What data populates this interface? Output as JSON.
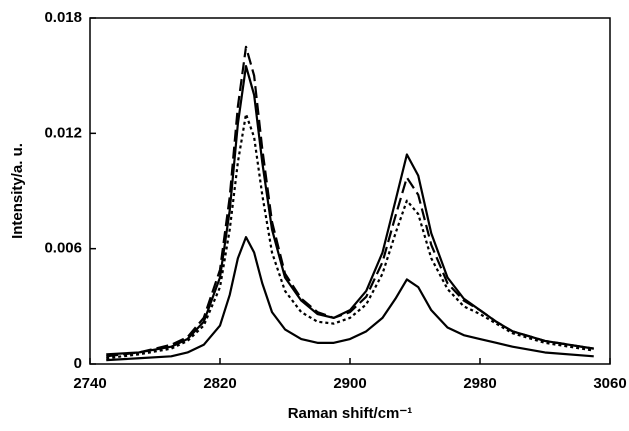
{
  "chart_data": {
    "type": "line",
    "xlabel": "Raman shift/cm⁻¹",
    "ylabel": "Intensity/a. u.",
    "xlim": [
      2740,
      3060
    ],
    "xticks": [
      2740,
      2820,
      2900,
      2980,
      3060
    ],
    "ylim": [
      0,
      0.018
    ],
    "yticks": [
      0,
      0.006,
      0.012,
      0.018
    ],
    "x": [
      2750,
      2770,
      2790,
      2800,
      2810,
      2820,
      2826,
      2831,
      2836,
      2841,
      2846,
      2852,
      2860,
      2870,
      2880,
      2890,
      2900,
      2910,
      2920,
      2928,
      2935,
      2942,
      2950,
      2960,
      2970,
      2980,
      2990,
      3000,
      3020,
      3050
    ],
    "series": [
      {
        "color": "#000000",
        "style": "dashed",
        "values": [
          0.0004,
          0.0006,
          0.001,
          0.0014,
          0.0024,
          0.0049,
          0.0087,
          0.0134,
          0.0165,
          0.015,
          0.0112,
          0.0074,
          0.0047,
          0.0034,
          0.0027,
          0.0024,
          0.0027,
          0.0035,
          0.0053,
          0.0077,
          0.0097,
          0.0088,
          0.0062,
          0.0042,
          0.0033,
          0.0028,
          0.0022,
          0.0017,
          0.0012,
          0.0008
        ]
      },
      {
        "color": "#000000",
        "style": "solid",
        "values": [
          0.0005,
          0.0006,
          0.0009,
          0.0013,
          0.0022,
          0.0045,
          0.008,
          0.0125,
          0.0155,
          0.014,
          0.0105,
          0.007,
          0.0045,
          0.0033,
          0.0026,
          0.0024,
          0.0028,
          0.0038,
          0.0058,
          0.0085,
          0.0109,
          0.0098,
          0.0068,
          0.0045,
          0.0034,
          0.0028,
          0.0022,
          0.0017,
          0.0012,
          0.0008
        ]
      },
      {
        "color": "#000000",
        "style": "dotted",
        "values": [
          0.0003,
          0.0005,
          0.0008,
          0.0012,
          0.002,
          0.004,
          0.007,
          0.0105,
          0.013,
          0.0118,
          0.0088,
          0.0058,
          0.0038,
          0.0027,
          0.0022,
          0.0021,
          0.0024,
          0.0031,
          0.0047,
          0.0068,
          0.0085,
          0.0078,
          0.0055,
          0.0039,
          0.003,
          0.0026,
          0.0021,
          0.0016,
          0.0011,
          0.0007
        ]
      },
      {
        "color": "#000000",
        "style": "solid",
        "values": [
          0.0002,
          0.0003,
          0.0004,
          0.0006,
          0.001,
          0.002,
          0.0036,
          0.0055,
          0.0066,
          0.0058,
          0.0042,
          0.0027,
          0.0018,
          0.0013,
          0.0011,
          0.0011,
          0.0013,
          0.0017,
          0.0024,
          0.0034,
          0.0044,
          0.004,
          0.0028,
          0.0019,
          0.0015,
          0.0013,
          0.0011,
          0.0009,
          0.0006,
          0.0004
        ]
      }
    ]
  }
}
